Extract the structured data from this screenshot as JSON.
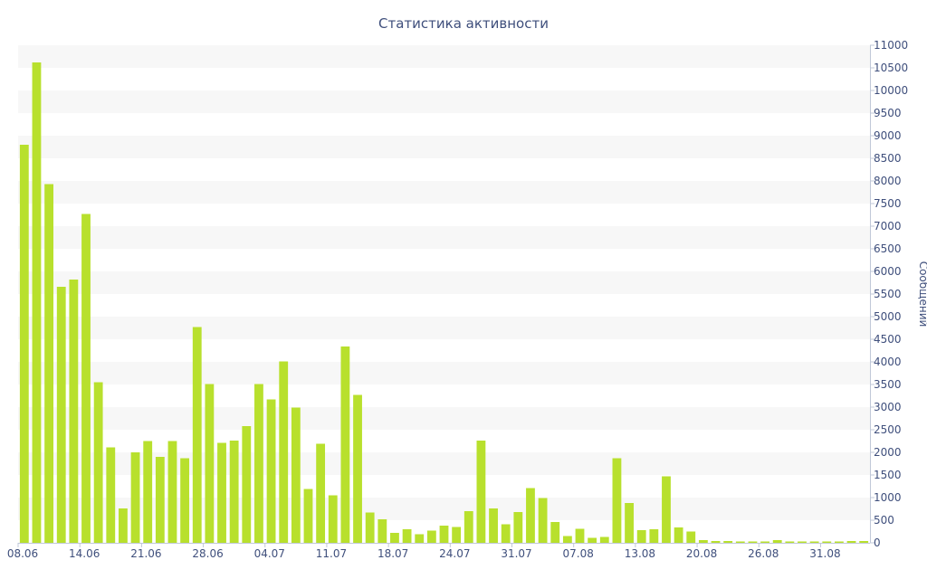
{
  "chart_data": {
    "type": "bar",
    "title": "Статистика активности",
    "xlabel": "",
    "ylabel": "Сообщений",
    "ylim": [
      0,
      11000
    ],
    "y_ticks": [
      0,
      500,
      1000,
      1500,
      2000,
      2500,
      3000,
      3500,
      4000,
      4500,
      5000,
      5500,
      6000,
      6500,
      7000,
      7500,
      8000,
      8500,
      9000,
      9500,
      10000,
      10500,
      11000
    ],
    "x_tick_labels": [
      "08.06",
      "14.06",
      "21.06",
      "28.06",
      "04.07",
      "11.07",
      "18.07",
      "24.07",
      "31.07",
      "07.08",
      "13.08",
      "20.08",
      "26.08",
      "31.08"
    ],
    "x_tick_indices": [
      0,
      5,
      10,
      15,
      20,
      25,
      30,
      35,
      40,
      45,
      50,
      55,
      60,
      65
    ],
    "y_axis_position": "right",
    "grid": "alternating horizontal bands",
    "bar_color": "#b8e02d",
    "band_color": "#f7f7f7",
    "text_color": "#3f4f7c",
    "values": [
      8800,
      10620,
      7930,
      5660,
      5820,
      7270,
      3550,
      2110,
      760,
      2000,
      2250,
      1900,
      2250,
      1870,
      4770,
      3510,
      2210,
      2260,
      2580,
      3510,
      3170,
      4010,
      2990,
      1190,
      2190,
      1050,
      4340,
      3270,
      670,
      520,
      220,
      300,
      190,
      270,
      380,
      350,
      700,
      2260,
      760,
      410,
      680,
      1210,
      990,
      460,
      150,
      310,
      110,
      130,
      1870,
      880,
      280,
      300,
      1470,
      340,
      250,
      60,
      40,
      40,
      30,
      30,
      30,
      60,
      30,
      30,
      30,
      30,
      30,
      40,
      40
    ]
  }
}
